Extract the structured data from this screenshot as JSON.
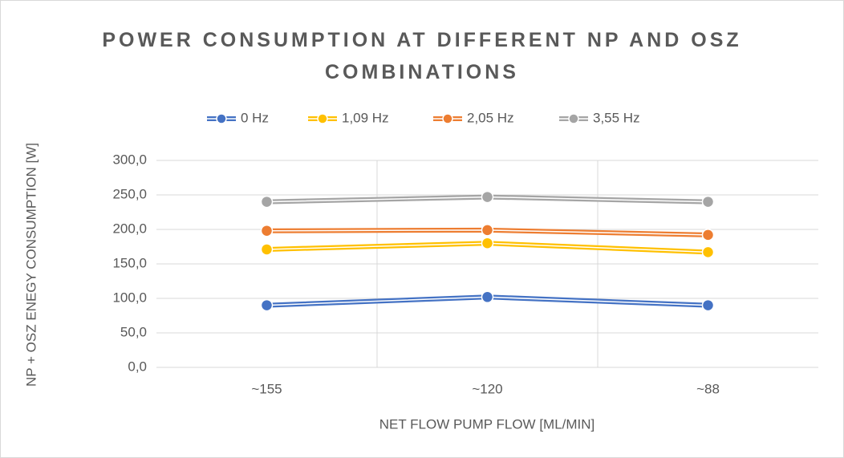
{
  "chart_data": {
    "type": "line",
    "title": "POWER CONSUMPTION AT DIFFERENT NP AND OSZ COMBINATIONS",
    "x_label": "NET FLOW PUMP FLOW [ML/MIN]",
    "y_label": "NP + OSZ ENEGY CONSUMPTION [W]",
    "categories": [
      "~155",
      "~120",
      "~88"
    ],
    "series": [
      {
        "name": "0 Hz",
        "color": "#4472c4",
        "values": [
          90,
          102,
          90
        ]
      },
      {
        "name": "1,09 Hz",
        "color": "#ffc000",
        "values": [
          171,
          180,
          167
        ]
      },
      {
        "name": "2,05 Hz",
        "color": "#ed7d31",
        "values": [
          198,
          199,
          192
        ]
      },
      {
        "name": "3,55 Hz",
        "color": "#a5a5a5",
        "values": [
          240,
          247,
          240
        ]
      }
    ],
    "ylim": [
      0,
      300
    ],
    "yticks": [
      {
        "value": 0,
        "label": "0,0"
      },
      {
        "value": 50,
        "label": "50,0"
      },
      {
        "value": 100,
        "label": "100,0"
      },
      {
        "value": 150,
        "label": "150,0"
      },
      {
        "value": 200,
        "label": "200,0"
      },
      {
        "value": 250,
        "label": "250,0"
      },
      {
        "value": 300,
        "label": "300,0"
      }
    ],
    "grid": true,
    "legend": "top"
  }
}
